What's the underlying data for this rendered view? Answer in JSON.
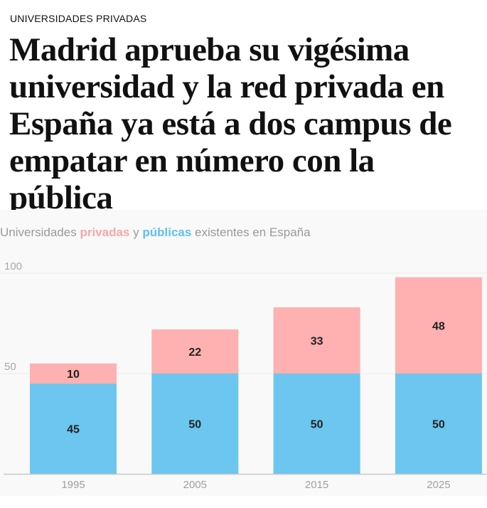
{
  "kicker": "UNIVERSIDADES PRIVADAS",
  "headline_lines": [
    "Madrid aprueba su vigésima",
    "universidad y la red privada en",
    "España ya está a dos campus de",
    "empatar en número con la",
    "pública"
  ],
  "chart_data": {
    "type": "bar",
    "stacked": true,
    "title_parts": {
      "pre": "Universidades ",
      "privadas": "privadas",
      "mid": " y ",
      "publicas": "públicas",
      "post": " existentes en España"
    },
    "categories": [
      "1995",
      "2005",
      "2015",
      "2025"
    ],
    "series": [
      {
        "name": "públicas",
        "color": "#6cc6ef",
        "values": [
          45,
          50,
          50,
          50
        ]
      },
      {
        "name": "privadas",
        "color": "#ffb0b0",
        "values": [
          10,
          22,
          33,
          48
        ]
      }
    ],
    "yticks": [
      "50",
      "100"
    ],
    "ylim": [
      0,
      100
    ],
    "grid": true
  }
}
